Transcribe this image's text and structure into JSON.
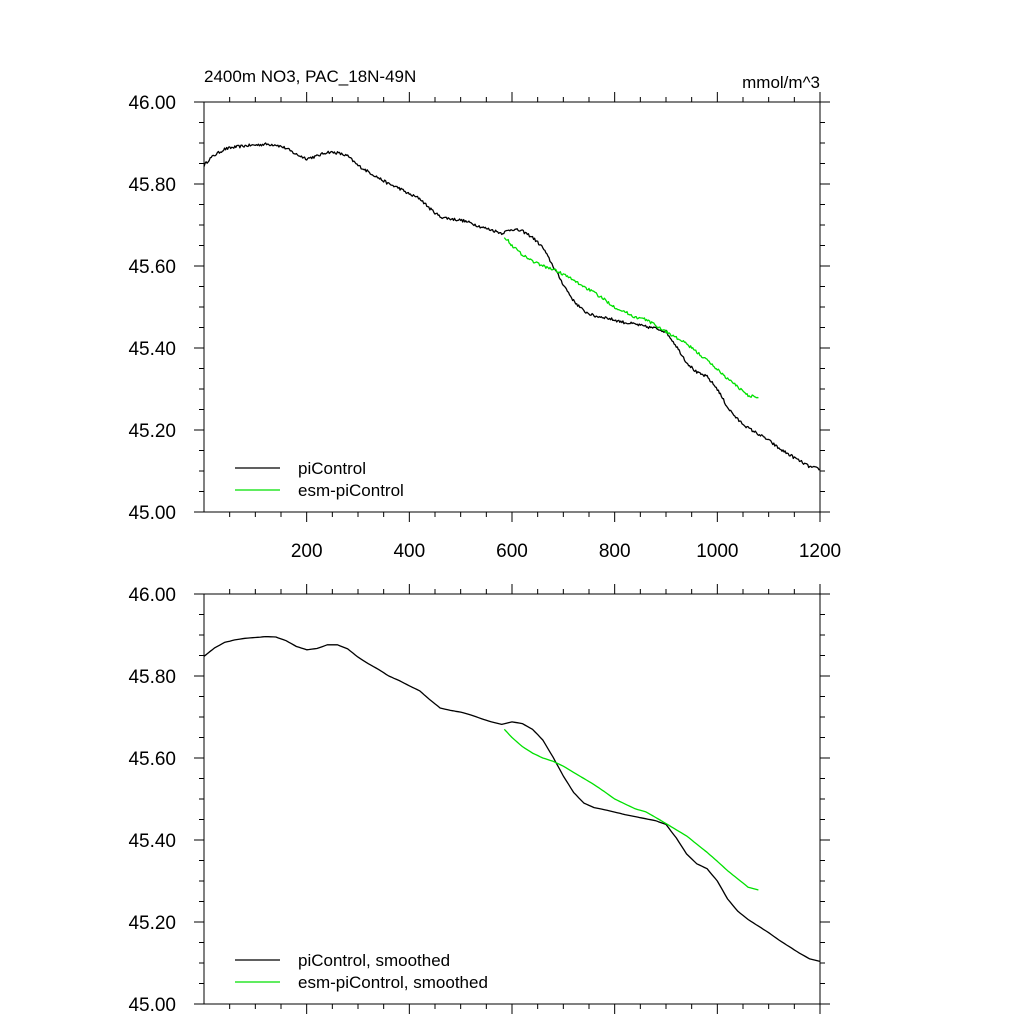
{
  "chart_data": [
    {
      "type": "line",
      "title": "2400m NO3, PAC_18N-49N",
      "units": "mmol/m^3",
      "xlim": [
        0,
        1200
      ],
      "ylim": [
        45.0,
        46.0
      ],
      "xticks": [
        200,
        400,
        600,
        800,
        1000,
        1200
      ],
      "xtick_labels": [
        "200",
        "400",
        "600",
        "800",
        "1000",
        "1200"
      ],
      "yticks": [
        45.0,
        45.2,
        45.4,
        45.6,
        45.8,
        46.0
      ],
      "ytick_labels": [
        "45.00",
        "45.20",
        "45.40",
        "45.60",
        "45.80",
        "46.00"
      ],
      "legend_position": "bottom-left",
      "series": [
        {
          "name": "piControl",
          "color": "#000000",
          "noisy": true,
          "x": [
            0,
            10,
            20,
            40,
            60,
            80,
            100,
            120,
            140,
            160,
            180,
            200,
            220,
            240,
            260,
            280,
            300,
            320,
            340,
            360,
            380,
            400,
            420,
            440,
            460,
            480,
            500,
            520,
            540,
            560,
            580,
            600,
            620,
            640,
            660,
            680,
            700,
            720,
            740,
            760,
            780,
            800,
            820,
            840,
            860,
            880,
            900,
            920,
            940,
            960,
            980,
            1000,
            1020,
            1040,
            1060,
            1080,
            1100,
            1120,
            1140,
            1160,
            1180,
            1200
          ],
          "y": [
            45.845,
            45.86,
            45.87,
            45.885,
            45.89,
            45.893,
            45.895,
            45.897,
            45.896,
            45.887,
            45.872,
            45.862,
            45.868,
            45.878,
            45.876,
            45.868,
            45.845,
            45.83,
            45.815,
            45.8,
            45.79,
            45.775,
            45.765,
            45.74,
            45.72,
            45.715,
            45.712,
            45.705,
            45.695,
            45.688,
            45.68,
            45.69,
            45.685,
            45.67,
            45.645,
            45.6,
            45.555,
            45.515,
            45.49,
            45.478,
            45.475,
            45.468,
            45.462,
            45.458,
            45.452,
            45.448,
            45.44,
            45.405,
            45.365,
            45.34,
            45.33,
            45.3,
            45.255,
            45.225,
            45.205,
            45.19,
            45.175,
            45.155,
            45.14,
            45.125,
            45.11,
            45.105
          ]
        },
        {
          "name": "esm-piControl",
          "color": "#00e000",
          "noisy": true,
          "x": [
            585,
            600,
            620,
            640,
            660,
            680,
            700,
            720,
            740,
            760,
            780,
            800,
            820,
            840,
            860,
            880,
            900,
            920,
            940,
            960,
            980,
            1000,
            1020,
            1040,
            1060,
            1080
          ],
          "y": [
            45.672,
            45.65,
            45.628,
            45.612,
            45.6,
            45.592,
            45.58,
            45.565,
            45.55,
            45.535,
            45.518,
            45.5,
            45.488,
            45.475,
            45.47,
            45.455,
            45.44,
            45.425,
            45.41,
            45.39,
            45.37,
            45.348,
            45.325,
            45.305,
            45.285,
            45.278
          ]
        }
      ]
    },
    {
      "type": "line",
      "title": "",
      "units": "",
      "xlim": [
        0,
        1200
      ],
      "ylim": [
        45.0,
        46.0
      ],
      "xticks": [
        200,
        400,
        600,
        800,
        1000,
        1200
      ],
      "xtick_labels": [],
      "yticks": [
        45.0,
        45.2,
        45.4,
        45.6,
        45.8,
        46.0
      ],
      "ytick_labels": [
        "45.00",
        "45.20",
        "45.40",
        "45.60",
        "45.80",
        "46.00"
      ],
      "legend_position": "bottom-left",
      "series": [
        {
          "name": "piControl, smoothed",
          "color": "#000000",
          "noisy": false,
          "x": [
            0,
            10,
            20,
            40,
            60,
            80,
            100,
            120,
            140,
            160,
            180,
            200,
            220,
            240,
            260,
            280,
            300,
            320,
            340,
            360,
            380,
            400,
            420,
            440,
            460,
            480,
            500,
            520,
            540,
            560,
            580,
            600,
            620,
            640,
            660,
            680,
            700,
            720,
            740,
            760,
            780,
            800,
            820,
            840,
            860,
            880,
            900,
            920,
            940,
            960,
            980,
            1000,
            1020,
            1040,
            1060,
            1080,
            1100,
            1120,
            1140,
            1160,
            1180,
            1200
          ],
          "y": [
            45.848,
            45.858,
            45.868,
            45.882,
            45.888,
            45.892,
            45.894,
            45.896,
            45.895,
            45.886,
            45.872,
            45.864,
            45.867,
            45.876,
            45.876,
            45.866,
            45.846,
            45.83,
            45.816,
            45.8,
            45.789,
            45.776,
            45.764,
            45.742,
            45.722,
            45.716,
            45.712,
            45.705,
            45.696,
            45.688,
            45.682,
            45.688,
            45.684,
            45.67,
            45.644,
            45.602,
            45.556,
            45.516,
            45.49,
            45.479,
            45.474,
            45.468,
            45.462,
            45.457,
            45.452,
            45.447,
            45.438,
            45.405,
            45.366,
            45.342,
            45.33,
            45.3,
            45.256,
            45.226,
            45.206,
            45.19,
            45.174,
            45.156,
            45.14,
            45.124,
            45.11,
            45.104
          ]
        },
        {
          "name": "esm-piControl, smoothed",
          "color": "#00e000",
          "noisy": false,
          "x": [
            585,
            600,
            620,
            640,
            660,
            680,
            700,
            720,
            740,
            760,
            780,
            800,
            820,
            840,
            860,
            880,
            900,
            920,
            940,
            960,
            980,
            1000,
            1020,
            1040,
            1060,
            1080
          ],
          "y": [
            45.67,
            45.65,
            45.628,
            45.612,
            45.6,
            45.592,
            45.58,
            45.565,
            45.55,
            45.535,
            45.518,
            45.5,
            45.488,
            45.476,
            45.469,
            45.455,
            45.44,
            45.425,
            45.41,
            45.39,
            45.37,
            45.348,
            45.325,
            45.305,
            45.285,
            45.278
          ]
        }
      ]
    }
  ]
}
